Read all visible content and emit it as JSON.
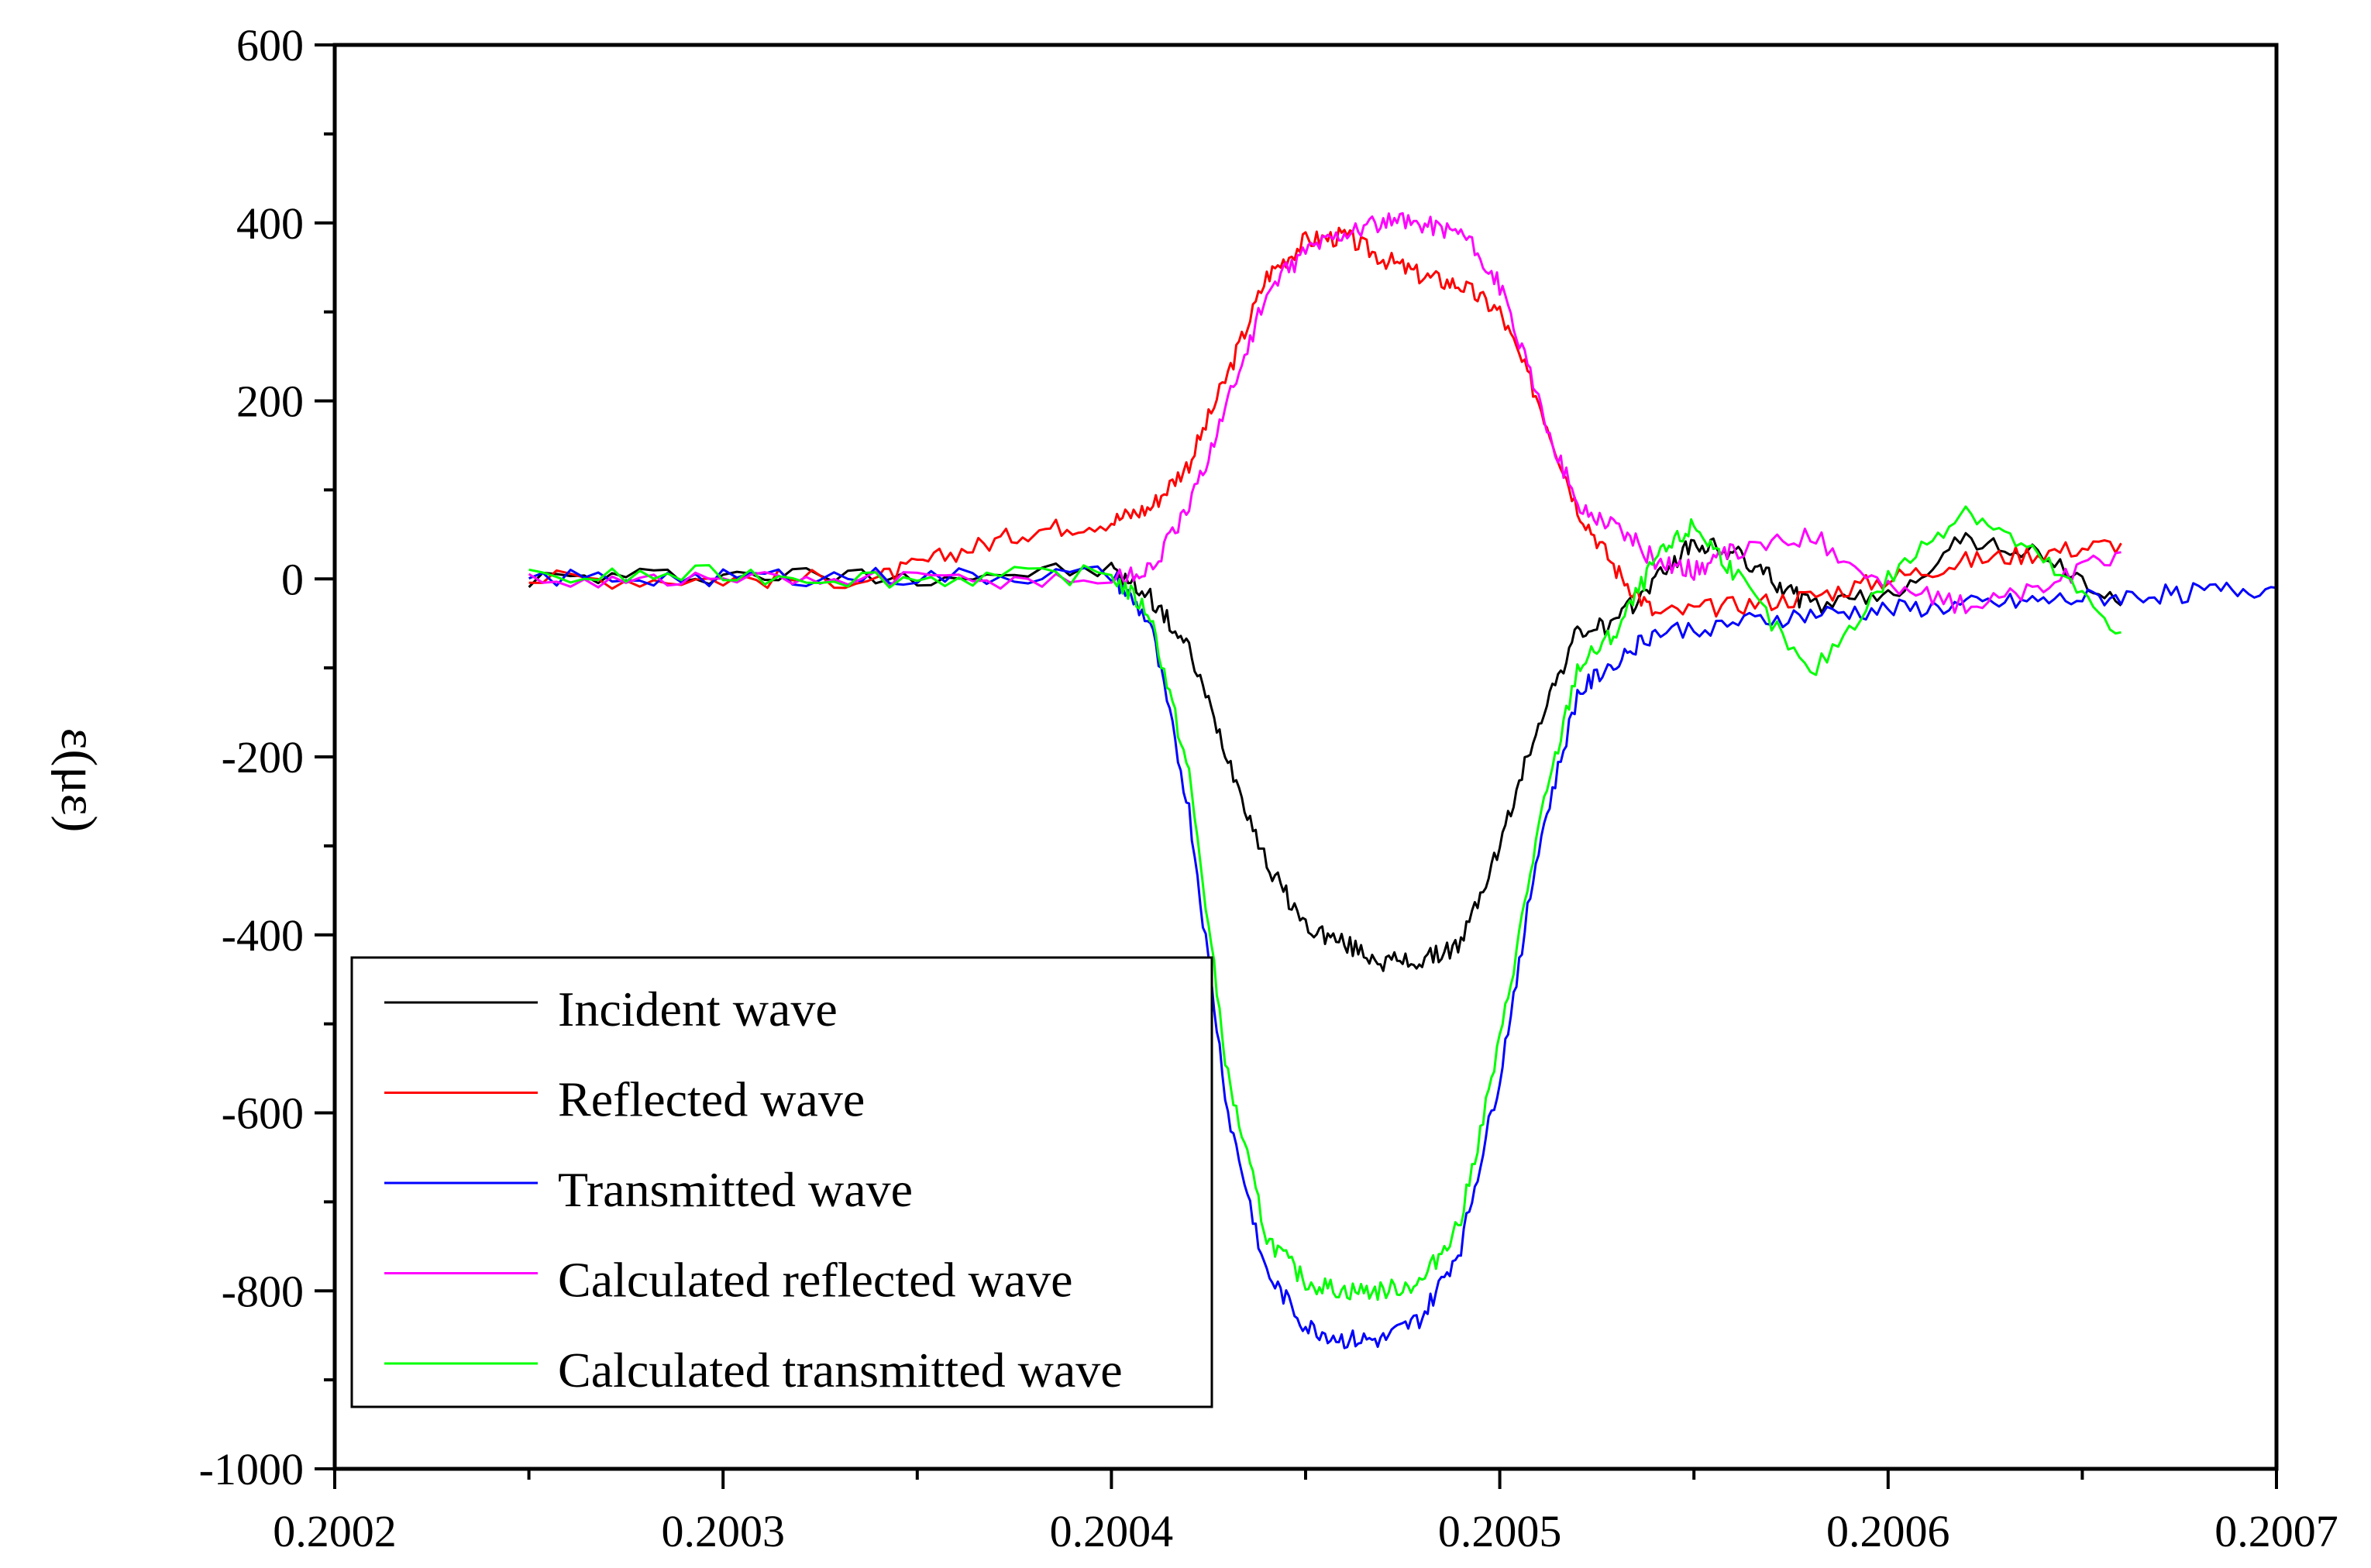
{
  "chart_data": {
    "type": "line",
    "title": "",
    "xlabel": "",
    "ylabel": "ε(με)",
    "xlim": [
      0.2002,
      0.2007
    ],
    "ylim": [
      -1000,
      600
    ],
    "xticks": [
      0.2002,
      0.2003,
      0.2004,
      0.2005,
      0.2006,
      0.2007
    ],
    "xtick_labels": [
      "0.2002",
      "0.2003",
      "0.2004",
      "0.2005",
      "0.2006",
      "0.2007"
    ],
    "yticks": [
      -1000,
      -800,
      -600,
      -400,
      -200,
      0,
      200,
      400,
      600
    ],
    "ytick_labels": [
      "-1000",
      "-800",
      "-600",
      "-400",
      "-200",
      "0",
      "200",
      "400",
      "600"
    ],
    "grid": false,
    "legend_position": "bottom-left",
    "series": [
      {
        "name": "Incident wave",
        "color": "#000000",
        "x": [
          0.20025,
          0.2003,
          0.20035,
          0.2004,
          0.20041,
          0.20042,
          0.20043,
          0.20044,
          0.20045,
          0.20046,
          0.20047,
          0.20048,
          0.20049,
          0.2005,
          0.20051,
          0.20052,
          0.20053,
          0.20054,
          0.20055,
          0.20056,
          0.20057,
          0.20058,
          0.2006,
          0.20062,
          0.20064,
          0.20066
        ],
        "y": [
          0,
          5,
          3,
          10,
          -20,
          -80,
          -200,
          -320,
          -390,
          -410,
          -430,
          -430,
          -410,
          -300,
          -160,
          -60,
          -50,
          0,
          40,
          30,
          0,
          -30,
          -20,
          45,
          25,
          -30
        ]
      },
      {
        "name": "Reflected wave",
        "color": "#ff0000",
        "x": [
          0.20025,
          0.2003,
          0.20034,
          0.20036,
          0.20038,
          0.2004,
          0.20041,
          0.20042,
          0.20043,
          0.20044,
          0.20045,
          0.20046,
          0.20047,
          0.20048,
          0.20049,
          0.2005,
          0.20051,
          0.20052,
          0.20053,
          0.20054,
          0.20056,
          0.20058,
          0.2006,
          0.20062,
          0.20064,
          0.20066
        ],
        "y": [
          0,
          0,
          0,
          30,
          55,
          65,
          80,
          130,
          230,
          340,
          380,
          385,
          360,
          340,
          330,
          300,
          200,
          80,
          10,
          -40,
          -30,
          -20,
          0,
          20,
          30,
          40
        ]
      },
      {
        "name": "Transmitted wave",
        "color": "#0000ff",
        "x": [
          0.20025,
          0.2003,
          0.20035,
          0.2004,
          0.20041,
          0.20042,
          0.20043,
          0.20044,
          0.20045,
          0.20046,
          0.20047,
          0.20048,
          0.20049,
          0.2005,
          0.20051,
          0.20052,
          0.20053,
          0.20054,
          0.20056,
          0.20058,
          0.2006,
          0.20062,
          0.20064,
          0.20066,
          0.20068,
          0.2007
        ],
        "y": [
          0,
          3,
          2,
          5,
          -50,
          -260,
          -600,
          -780,
          -840,
          -855,
          -855,
          -830,
          -750,
          -560,
          -300,
          -130,
          -90,
          -60,
          -50,
          -40,
          -35,
          -30,
          -25,
          -20,
          -15,
          -10
        ]
      },
      {
        "name": "Calculated reflected wave",
        "color": "#ff00ff",
        "x": [
          0.20025,
          0.2003,
          0.20035,
          0.2004,
          0.20041,
          0.20042,
          0.20043,
          0.20044,
          0.20045,
          0.20046,
          0.20047,
          0.20048,
          0.20049,
          0.2005,
          0.20051,
          0.20052,
          0.20053,
          0.20054,
          0.20055,
          0.20056,
          0.20058,
          0.2006,
          0.20062,
          0.20064,
          0.20066
        ],
        "y": [
          0,
          0,
          0,
          0,
          10,
          80,
          200,
          320,
          370,
          390,
          400,
          400,
          390,
          330,
          200,
          80,
          60,
          20,
          10,
          30,
          50,
          -10,
          -30,
          -10,
          30
        ]
      },
      {
        "name": "Calculated transmitted wave",
        "color": "#00ff00",
        "x": [
          0.20025,
          0.2003,
          0.20035,
          0.2004,
          0.20041,
          0.20042,
          0.20043,
          0.20044,
          0.20045,
          0.20046,
          0.20047,
          0.20048,
          0.20049,
          0.2005,
          0.20051,
          0.20052,
          0.20053,
          0.20054,
          0.20055,
          0.20056,
          0.20058,
          0.2006,
          0.20062,
          0.20064,
          0.20066
        ],
        "y": [
          0,
          5,
          0,
          5,
          -40,
          -220,
          -560,
          -740,
          -790,
          -800,
          -800,
          -790,
          -720,
          -520,
          -280,
          -100,
          -60,
          20,
          60,
          10,
          -110,
          0,
          80,
          20,
          -60
        ]
      }
    ]
  }
}
